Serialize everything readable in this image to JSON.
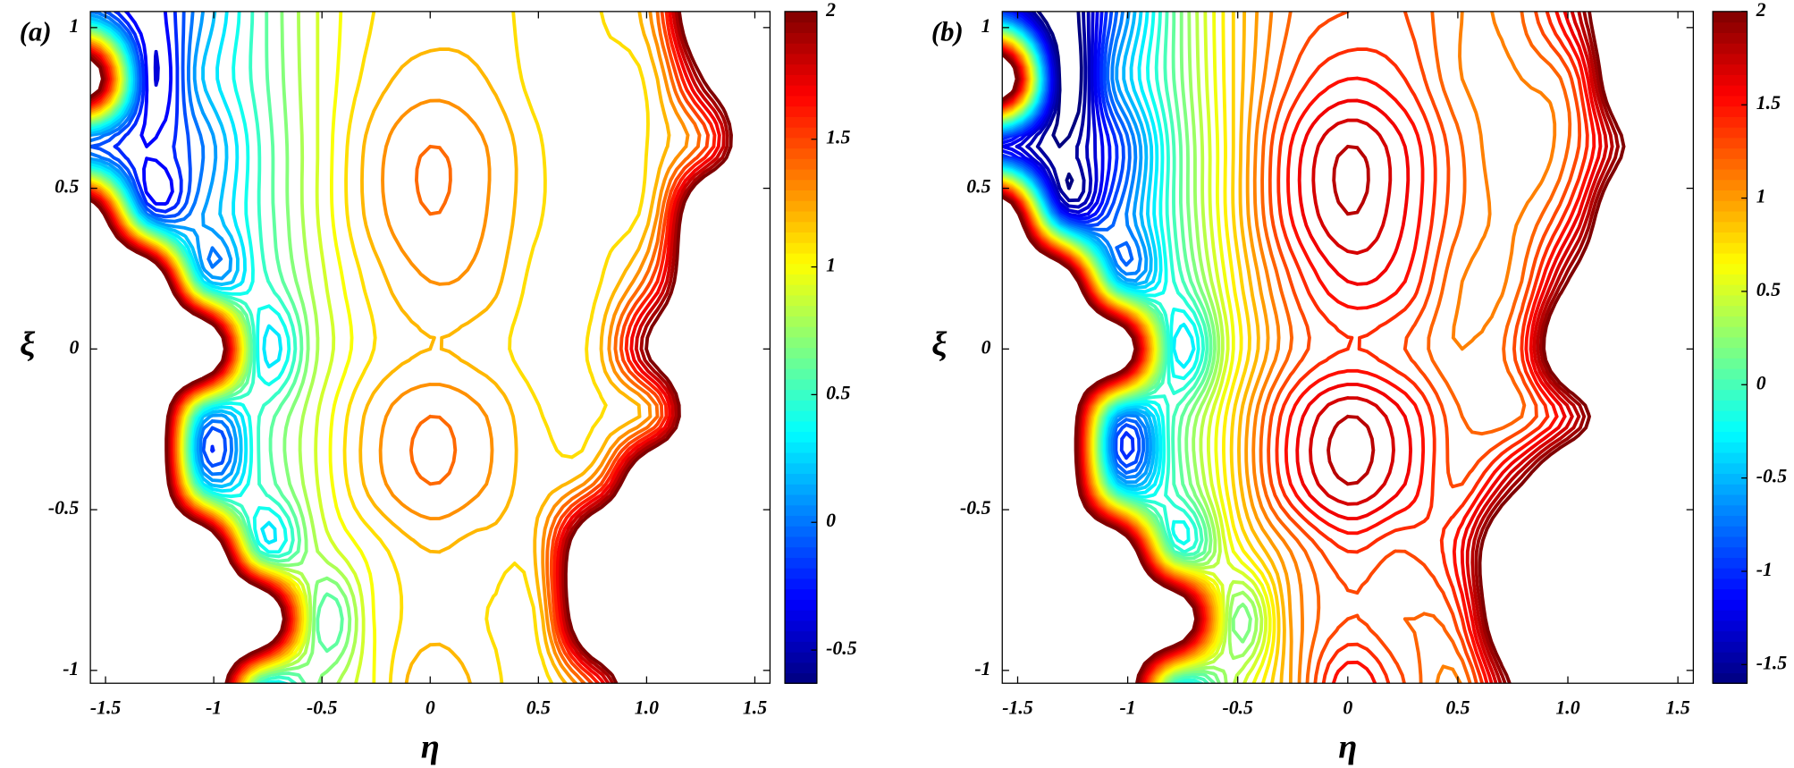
{
  "chart_data": [
    {
      "type": "contour",
      "title": "(a)",
      "x_label": "η",
      "y_label": "ξ",
      "colormap": "jet",
      "xlim": [
        -1.57,
        1.57
      ],
      "ylim": [
        -1.04,
        1.05
      ],
      "xticks": [
        -1.5,
        -1,
        -0.5,
        0,
        0.5,
        {
          "value": 1,
          "label": "1.0"
        },
        1.5
      ],
      "yticks": [
        -1,
        -0.5,
        0,
        0.5,
        1
      ],
      "clim": [
        -0.63,
        2
      ],
      "cticks": [
        -0.5,
        0,
        0.5,
        1,
        1.5,
        2
      ],
      "levels": [
        -0.5,
        -0.4,
        -0.3,
        -0.2,
        -0.1,
        0,
        0.1,
        0.2,
        0.3,
        0.4,
        0.5,
        0.6,
        0.7,
        0.8,
        0.9,
        1,
        1.1,
        1.2,
        1.3,
        1.4,
        1.5,
        1.6,
        1.7,
        1.8,
        1.9,
        2
      ],
      "x": [
        -1.57,
        -1.31,
        -1.05,
        -0.79,
        -0.52,
        -0.26,
        0,
        0.26,
        0.52,
        0.79,
        1.05,
        1.31,
        1.57
      ],
      "y": [
        -1.05,
        -0.84,
        -0.63,
        -0.42,
        -0.21,
        0,
        0.21,
        0.42,
        0.63,
        0.84,
        1.05
      ],
      "z": [
        [
          3,
          3,
          3,
          0.4,
          0.7,
          1.0,
          1.3,
          1.15,
          1.05,
          1.6,
          3,
          3,
          3
        ],
        [
          3,
          3,
          3,
          3,
          0.6,
          1.0,
          1.15,
          1.1,
          1.2,
          3,
          3,
          3,
          3
        ],
        [
          3,
          3,
          3,
          0.5,
          0.8,
          1.05,
          1.2,
          1.15,
          1.3,
          3,
          3,
          3,
          3
        ],
        [
          3,
          3,
          0.3,
          0.5,
          0.9,
          1.25,
          1.4,
          1.3,
          1.15,
          1.5,
          3,
          3,
          3
        ],
        [
          3,
          3,
          0.2,
          0.5,
          0.9,
          1.25,
          1.4,
          1.3,
          1.1,
          1.1,
          1.4,
          3,
          3
        ],
        [
          3,
          3,
          3,
          0.35,
          0.8,
          1.1,
          1.2,
          1.15,
          1.05,
          1.2,
          2.2,
          3,
          3
        ],
        [
          3,
          3,
          0.3,
          0.45,
          0.85,
          1.15,
          1.3,
          1.25,
          1.05,
          1.1,
          1.6,
          3,
          3
        ],
        [
          2.5,
          0.0,
          0.1,
          0.5,
          0.9,
          1.25,
          1.4,
          1.3,
          1.1,
          1.05,
          1.3,
          3,
          3
        ],
        [
          -0.1,
          -0.3,
          0.0,
          0.5,
          0.9,
          1.25,
          1.4,
          1.3,
          1.1,
          1.0,
          1.15,
          1.6,
          3
        ],
        [
          2.5,
          -0.3,
          0.2,
          0.55,
          0.9,
          1.15,
          1.25,
          1.2,
          1.05,
          1.05,
          1.2,
          2.2,
          3
        ],
        [
          0.0,
          -0.4,
          0.1,
          0.55,
          0.9,
          1.1,
          1.15,
          1.15,
          1.05,
          1.1,
          1.4,
          3,
          3
        ]
      ]
    },
    {
      "type": "contour",
      "title": "(b)",
      "x_label": "η",
      "y_label": "ξ",
      "colormap": "jet",
      "xlim": [
        -1.57,
        1.57
      ],
      "ylim": [
        -1.04,
        1.05
      ],
      "xticks": [
        -1.5,
        -1,
        -0.5,
        0,
        0.5,
        {
          "value": 1,
          "label": "1.0"
        },
        1.5
      ],
      "yticks": [
        -1,
        -0.5,
        0,
        0.5,
        1
      ],
      "clim": [
        -1.6,
        2
      ],
      "cticks": [
        -1.5,
        -1,
        -0.5,
        0,
        0.5,
        1,
        1.5,
        2
      ],
      "levels": [
        -1.6,
        -1.5,
        -1.4,
        -1.3,
        -1.2,
        -1.1,
        -1,
        -0.9,
        -0.8,
        -0.7,
        -0.6,
        -0.5,
        -0.4,
        -0.3,
        -0.2,
        -0.1,
        0,
        0.1,
        0.2,
        0.3,
        0.4,
        0.5,
        0.6,
        0.7,
        0.8,
        0.9,
        1,
        1.1,
        1.2,
        1.3,
        1.4,
        1.5,
        1.6,
        1.7,
        1.8,
        1.9,
        2
      ],
      "x": [
        -1.57,
        -1.31,
        -1.05,
        -0.79,
        -0.52,
        -0.26,
        0,
        0.26,
        0.52,
        0.79,
        1.05,
        1.31,
        1.57
      ],
      "y": [
        -1.05,
        -0.84,
        -0.63,
        -0.42,
        -0.21,
        0,
        0.21,
        0.42,
        0.63,
        0.84,
        1.05
      ],
      "z": [
        [
          3,
          3,
          3,
          -0.2,
          0.4,
          1.0,
          1.6,
          1.3,
          1.1,
          2.2,
          3,
          3,
          3
        ],
        [
          3,
          3,
          3,
          3,
          0.2,
          1.0,
          1.3,
          1.2,
          1.4,
          3,
          3,
          3,
          3
        ],
        [
          3,
          3,
          3,
          0.0,
          0.6,
          1.1,
          1.4,
          1.3,
          1.6,
          3,
          3,
          3,
          3
        ],
        [
          3,
          3,
          -0.4,
          0.0,
          0.8,
          1.5,
          1.8,
          1.6,
          1.3,
          2.0,
          3,
          3,
          3
        ],
        [
          3,
          3,
          -0.6,
          0.0,
          0.8,
          1.5,
          1.8,
          1.6,
          1.2,
          1.2,
          1.8,
          3,
          3
        ],
        [
          3,
          3,
          3,
          -0.3,
          0.6,
          1.2,
          1.4,
          1.3,
          1.1,
          1.4,
          3,
          3,
          3
        ],
        [
          3,
          3,
          -0.4,
          -0.1,
          0.7,
          1.3,
          1.6,
          1.5,
          1.1,
          1.2,
          2.2,
          3,
          3
        ],
        [
          3,
          -1.0,
          -0.8,
          0.0,
          0.8,
          1.5,
          1.8,
          1.6,
          1.2,
          1.1,
          1.6,
          3,
          3
        ],
        [
          -1.2,
          -1.6,
          -1.0,
          0.0,
          0.8,
          1.5,
          1.8,
          1.6,
          1.2,
          1.0,
          1.3,
          2.2,
          3
        ],
        [
          3,
          -1.6,
          -0.6,
          0.1,
          0.8,
          1.3,
          1.5,
          1.4,
          1.1,
          1.1,
          1.4,
          3,
          3
        ],
        [
          -1.0,
          -1.8,
          -0.8,
          0.1,
          0.8,
          1.2,
          1.3,
          1.3,
          1.1,
          1.2,
          1.8,
          3,
          3
        ]
      ]
    }
  ]
}
